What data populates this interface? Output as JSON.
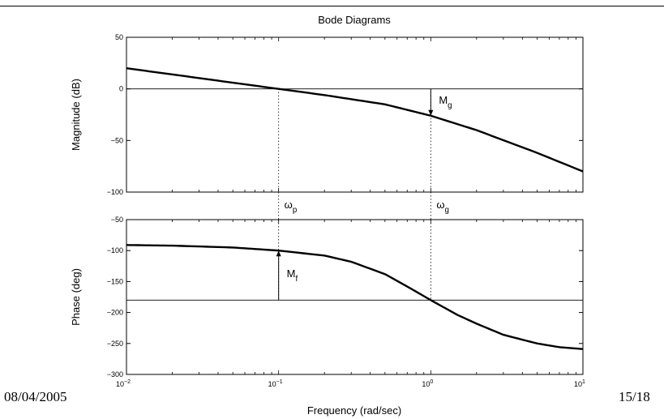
{
  "slide": {
    "footer_date": "08/04/2005",
    "footer_page": "15/18"
  },
  "chart_data": {
    "type": "line",
    "title": "Bode Diagrams",
    "xlabel": "Frequency (rad/sec)",
    "x_scale": "log",
    "xlim": [
      0.01,
      10
    ],
    "x_ticks": [
      {
        "base": "10",
        "exp": "-2"
      },
      {
        "base": "10",
        "exp": "-1"
      },
      {
        "base": "10",
        "exp": "0"
      },
      {
        "base": "10",
        "exp": "1"
      }
    ],
    "grid": false,
    "panels": [
      {
        "name": "magnitude",
        "ylabel": "Magnitude (dB)",
        "ylim": [
          -100,
          50
        ],
        "y_ticks": [
          "50",
          "0",
          "-50",
          "-100"
        ],
        "reference_line": 0,
        "series": [
          {
            "x": [
              0.01,
              0.02,
              0.05,
              0.1,
              0.2,
              0.5,
              1,
              2,
              5,
              10
            ],
            "y": [
              20,
              14,
              6,
              0,
              -6,
              -15,
              -26,
              -40,
              -62,
              -80
            ]
          }
        ]
      },
      {
        "name": "phase",
        "ylabel": "Phase (deg)",
        "ylim": [
          -300,
          -50
        ],
        "y_ticks": [
          "-50",
          "-100",
          "-150",
          "-200",
          "-250",
          "-300"
        ],
        "reference_line": -180,
        "series": [
          {
            "x": [
              0.01,
              0.02,
              0.05,
              0.1,
              0.2,
              0.3,
              0.5,
              0.7,
              1,
              1.5,
              2,
              3,
              5,
              7,
              10
            ],
            "y": [
              -91,
              -92,
              -95,
              -100,
              -108,
              -118,
              -138,
              -158,
              -180,
              -204,
              -218,
              -236,
              -250,
              -256,
              -259
            ]
          }
        ]
      }
    ],
    "annotations": [
      {
        "label": "ω",
        "sub": "p",
        "x": 0.1
      },
      {
        "label": "ω",
        "sub": "g",
        "x": 1
      },
      {
        "label": "M",
        "sub": "g",
        "x": 1,
        "panel": "magnitude",
        "from": 0,
        "to": -26
      },
      {
        "label": "M",
        "sub": "f",
        "x": 0.1,
        "panel": "phase",
        "from": -180,
        "to": -100
      }
    ]
  }
}
